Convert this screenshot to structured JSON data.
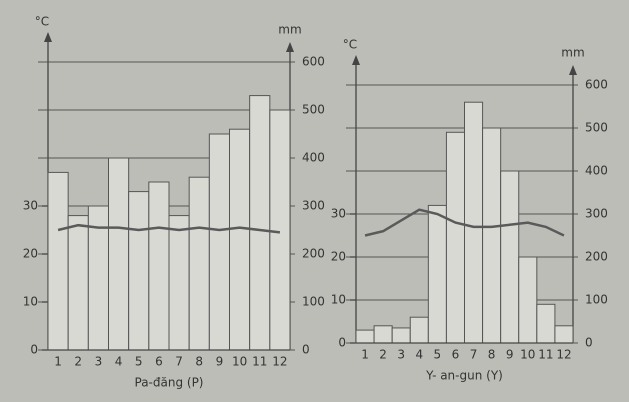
{
  "chart_data": [
    {
      "type": "combo",
      "title": "Pa-đăng (P)",
      "y_label": "°C",
      "y2_label": "mm",
      "categories": [
        "1",
        "2",
        "3",
        "4",
        "5",
        "6",
        "7",
        "8",
        "9",
        "10",
        "11",
        "12"
      ],
      "series": [
        {
          "type": "bar",
          "axis": "y2",
          "color": "#d9d9d4",
          "values": [
            370,
            280,
            300,
            400,
            330,
            350,
            280,
            360,
            450,
            460,
            530,
            500
          ]
        },
        {
          "type": "line",
          "color": "#5a5a5a",
          "values": [
            25,
            26,
            25.5,
            25.5,
            25,
            25.5,
            25,
            25.5,
            25,
            25.5,
            25,
            24.5
          ]
        }
      ],
      "ylim": [
        0,
        60
      ],
      "yticks": [
        0,
        10,
        20,
        30
      ],
      "y2lim": [
        0,
        600
      ],
      "y2ticks": [
        0,
        100,
        200,
        300,
        400,
        500,
        600
      ],
      "grid": true
    },
    {
      "type": "combo",
      "title": "Y- an-gun (Y)",
      "y_label": "°C",
      "y2_label": "mm",
      "categories": [
        "1",
        "2",
        "3",
        "4",
        "5",
        "6",
        "7",
        "8",
        "9",
        "10",
        "11",
        "12"
      ],
      "series": [
        {
          "type": "bar",
          "axis": "y2",
          "color": "#d9d9d4",
          "values": [
            30,
            40,
            35,
            60,
            320,
            490,
            560,
            500,
            400,
            200,
            90,
            40
          ]
        },
        {
          "type": "line",
          "color": "#5a5a5a",
          "values": [
            25,
            26,
            28.5,
            31,
            30,
            28,
            27,
            27,
            27.5,
            28,
            27,
            25
          ]
        }
      ],
      "ylim": [
        0,
        60
      ],
      "yticks": [
        0,
        10,
        20,
        30
      ],
      "y2lim": [
        0,
        600
      ],
      "y2ticks": [
        0,
        100,
        200,
        300,
        400,
        500,
        600
      ],
      "grid": true
    }
  ]
}
